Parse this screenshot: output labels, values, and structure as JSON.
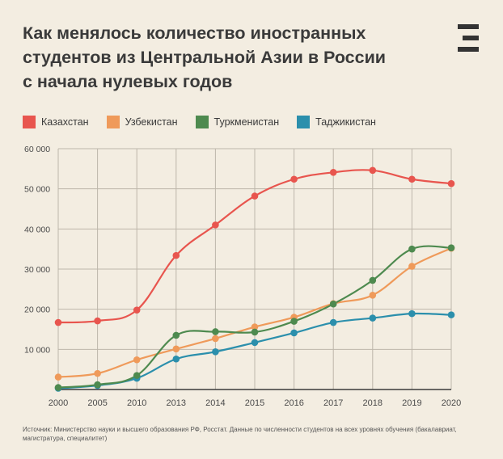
{
  "title_lines": [
    "Как менялось количество иностранных",
    "студентов из Центральной Азии в России",
    "с начала нулевых годов"
  ],
  "logo_icon": "menu-e-logo-icon",
  "source": "Источник: Министерство науки и высшего образования РФ, Росстат. Данные по численности студентов на всех уровнях обучения (бакалавриат, магистратура, специалитет)",
  "chart_data": {
    "type": "line",
    "title": "Как менялось количество иностранных студентов из Центральной Азии в России с начала нулевых годов",
    "xlabel": "",
    "ylabel": "",
    "x": [
      "2000",
      "2005",
      "2010",
      "2013",
      "2014",
      "2015",
      "2016",
      "2017",
      "2018",
      "2019",
      "2020"
    ],
    "ylim": [
      0,
      60000
    ],
    "yticks": [
      10000,
      20000,
      30000,
      40000,
      50000,
      60000
    ],
    "ytick_labels": [
      "10 000",
      "20 000",
      "30 000",
      "40 000",
      "50 000",
      "60 000"
    ],
    "grid": true,
    "legend_position": "top",
    "series": [
      {
        "name": "Казахстан",
        "color": "#e8554e",
        "values": [
          16700,
          17100,
          19800,
          33400,
          41000,
          48200,
          52400,
          54100,
          54600,
          52400,
          51300
        ]
      },
      {
        "name": "Узбекистан",
        "color": "#ef9a5a",
        "values": [
          3100,
          4000,
          7400,
          10100,
          12700,
          15600,
          18000,
          21400,
          23500,
          30700,
          35200
        ]
      },
      {
        "name": "Туркменистан",
        "color": "#4e8a4f",
        "values": [
          500,
          1200,
          3500,
          13500,
          14400,
          14300,
          17000,
          21300,
          27200,
          35000,
          35300
        ]
      },
      {
        "name": "Таджикистан",
        "color": "#2b8fac",
        "values": [
          300,
          1000,
          2800,
          7600,
          9400,
          11700,
          14100,
          16700,
          17800,
          18900,
          18600
        ]
      }
    ]
  }
}
